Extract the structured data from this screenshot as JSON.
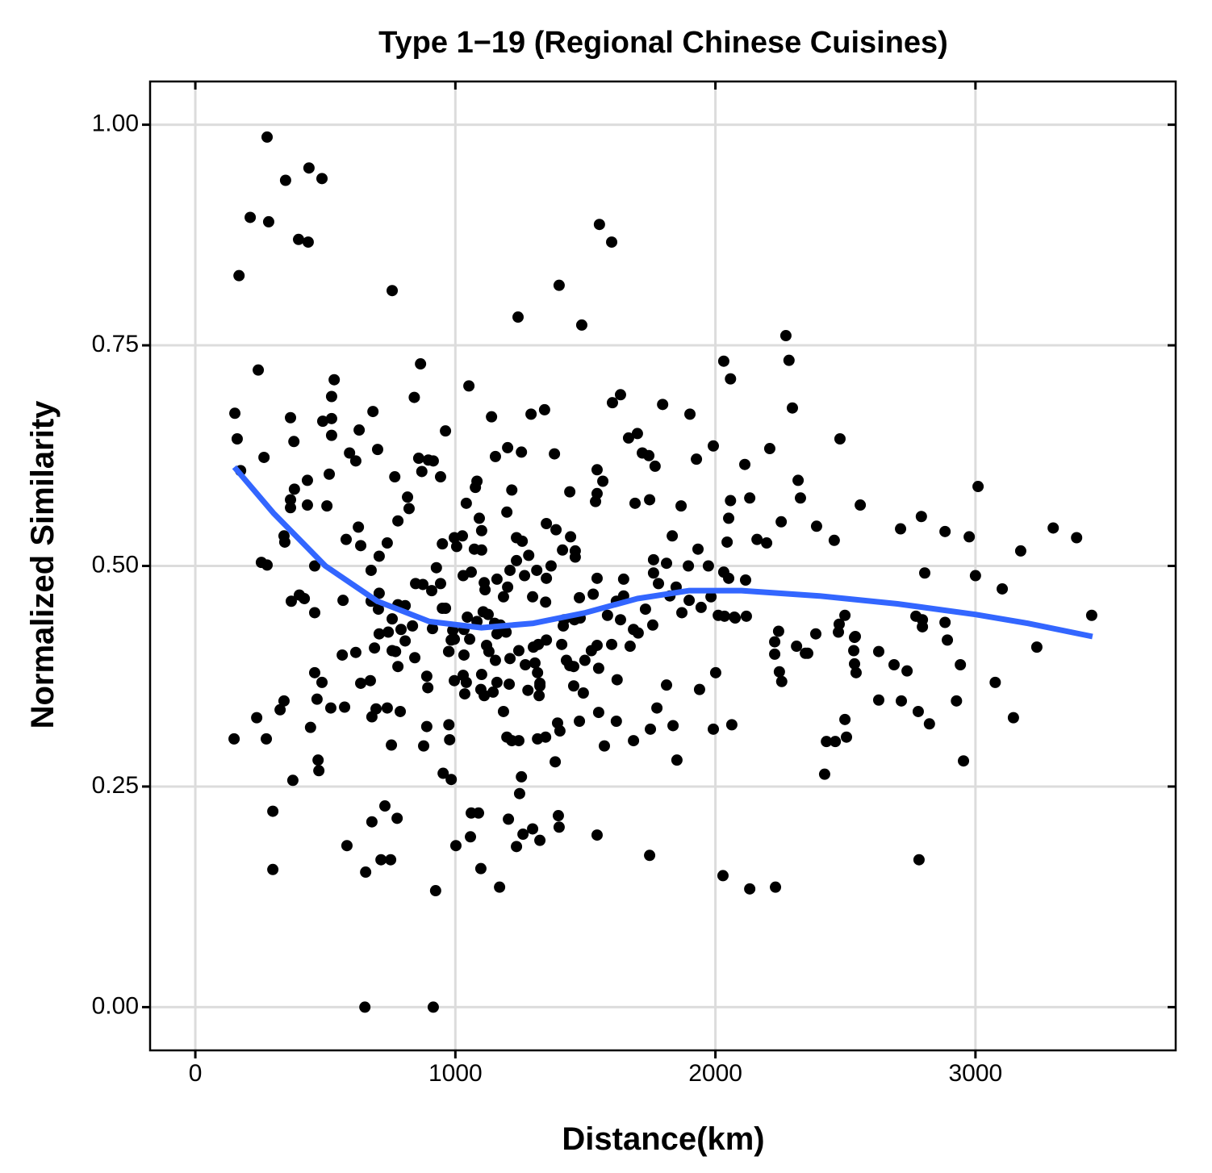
{
  "chart_data": {
    "type": "scatter",
    "title": "Type 1−19 (Regional Chinese Cuisines)",
    "xlabel": "Distance(km)",
    "ylabel": "Normalized Similarity",
    "xlim": [
      -174,
      3770
    ],
    "ylim": [
      -0.049,
      1.049
    ],
    "xticks": [
      0,
      1000,
      2000,
      3000
    ],
    "yticks": [
      {
        "value": 0,
        "label": "0.00"
      },
      {
        "value": 0.25,
        "label": "0.25"
      },
      {
        "value": 0.5,
        "label": "0.50"
      },
      {
        "value": 0.75,
        "label": "0.75"
      },
      {
        "value": 1,
        "label": "1.00"
      }
    ],
    "grid": true,
    "series": [
      {
        "mark": "point",
        "color": "#000000",
        "x": [
          276,
          437,
          347,
          487,
          211,
          282,
          397,
          434,
          168,
          757,
          1554,
          1601,
          1399,
          1241,
          1486,
          2271,
          2283,
          2032,
          242,
          2058,
          534,
          866,
          1052,
          152,
          366,
          683,
          842,
          1139,
          1291,
          1343,
          1635,
          2296,
          2479,
          161,
          379,
          593,
          962,
          1201,
          1666,
          1992,
          1927,
          2209,
          2113,
          3010,
          2557,
          2792,
          3389,
          3299,
          3174,
          3103,
          3447,
          3236,
          3000,
          2976,
          2883,
          2712,
          2457,
          2389,
          2318,
          2805,
          2796,
          2883,
          2892,
          2942,
          2927,
          3076,
          3146,
          2954,
          2783,
          2780,
          2823,
          2737,
          2687,
          2628,
          2628,
          2715,
          2535,
          2541,
          2532,
          2535,
          2498,
          2473,
          2498,
          2504,
          2461,
          2420,
          2312,
          2346,
          2243,
          2228,
          2246,
          2255,
          2231,
          2132,
          2029,
          2063,
          1992,
          2001,
          1939,
          1852,
          1837,
          1747,
          1685,
          1750,
          1775,
          1812,
          1573,
          1545,
          1551,
          1619,
          1384,
          1396,
          1399,
          1325,
          1297,
          1260,
          1235,
          1204,
          1247,
          1254,
          1170,
          1098,
          1058,
          1061,
          1089,
          1002,
          924,
          915,
          652,
          655,
          583,
          679,
          729,
          714,
          751,
          776,
          298,
          298,
          375,
          472,
          475,
          443,
          273,
          149,
          236,
          326,
          341,
          459,
          487,
          468,
          521,
          574,
          617,
          565,
          636,
          673,
          679,
          695,
          738,
          788,
          754,
          878,
          890,
          975,
          978,
          953,
          984,
          791,
          770,
          779,
          844,
          890,
          894,
          975,
          996,
          1036,
          1042,
          1098,
          1145,
          1101,
          1154,
          1210,
          1207,
          1217,
          1244,
          1198,
          1316,
          1347,
          1402,
          1393,
          1477,
          1455,
          1492,
          1440,
          1523,
          1551,
          1269,
          1316,
          1306,
          1279,
          1325,
          1319,
          1325,
          1322,
          1415,
          1418,
          1480,
          1530,
          1545,
          1585,
          1619,
          1647,
          1647,
          1622,
          1672,
          1703,
          1759,
          1762,
          1812,
          1834,
          1868,
          1933,
          1973,
          1945,
          1899,
          1871,
          2011,
          2035,
          2073,
          2119,
          2045,
          2051,
          2058,
          2132,
          2160,
          2197,
          2253,
          2327,
          1747,
          1691,
          1719,
          1768,
          1744,
          1797,
          1902,
          1700,
          1604,
          1567,
          1545,
          1545,
          1539,
          1440,
          1381,
          1254,
          1154,
          1083,
          1077,
          1042,
          1027,
          996,
          1005,
          943,
          915,
          859,
          871,
          896,
          816,
          767,
          822,
          779,
          738,
          707,
          676,
          636,
          627,
          617,
          630,
          701,
          515,
          506,
          431,
          431,
          381,
          366,
          366,
          341,
          344,
          369,
          400,
          419,
          459,
          459,
          254,
          276,
          264,
          174,
          524,
          490,
          524,
          524,
          580,
          568,
          676,
          707,
          704,
          757,
          779,
          807,
          742,
          707,
          689,
          757,
          807,
          835,
          847,
          875,
          909,
          943,
          950,
          912,
          990,
          984,
          1033,
          1055,
          1083,
          1107,
          1126,
          1114,
          1111,
          1151,
          1173,
          1195,
          1201,
          1210,
          1235,
          1235,
          1257,
          1282,
          1297,
          1266,
          1313,
          1347,
          1350,
          1368,
          1412,
          1461,
          1443,
          1461,
          1477,
          1458,
          1387,
          1350,
          1198,
          1217,
          1092,
          1101,
          1030,
          1061,
          1073,
          1101,
          1160,
          1185,
          1160,
          1120,
          1033,
          974,
          1030,
          1111,
          1129,
          950,
          927,
          962,
          1046,
          996,
          1160,
          1185,
          1244,
          1300,
          1350,
          1409,
          1427,
          1455,
          1498,
          1545,
          1601,
          1635,
          1685,
          1731,
          1762,
          1781,
          1849,
          1825,
          1896,
          1983,
          2032,
          2051,
          2116,
          2076,
          2228,
          2476,
          2427,
          2355,
          2386,
          2538,
          2771,
          2796
        ],
        "values": [
          0.986,
          0.951,
          0.937,
          0.939,
          0.895,
          0.89,
          0.87,
          0.867,
          0.829,
          0.812,
          0.887,
          0.867,
          0.818,
          0.782,
          0.773,
          0.761,
          0.733,
          0.732,
          0.722,
          0.712,
          0.711,
          0.729,
          0.704,
          0.673,
          0.668,
          0.675,
          0.691,
          0.669,
          0.672,
          0.677,
          0.694,
          0.679,
          0.644,
          0.644,
          0.641,
          0.628,
          0.653,
          0.634,
          0.645,
          0.636,
          0.621,
          0.633,
          0.615,
          0.59,
          0.569,
          0.556,
          0.532,
          0.543,
          0.517,
          0.474,
          0.444,
          0.408,
          0.489,
          0.533,
          0.539,
          0.542,
          0.529,
          0.545,
          0.597,
          0.492,
          0.439,
          0.436,
          0.416,
          0.388,
          0.347,
          0.368,
          0.328,
          0.279,
          0.167,
          0.335,
          0.321,
          0.381,
          0.388,
          0.403,
          0.348,
          0.347,
          0.389,
          0.379,
          0.404,
          0.419,
          0.444,
          0.425,
          0.326,
          0.306,
          0.301,
          0.264,
          0.409,
          0.401,
          0.426,
          0.4,
          0.38,
          0.369,
          0.136,
          0.134,
          0.149,
          0.32,
          0.315,
          0.379,
          0.36,
          0.28,
          0.319,
          0.172,
          0.302,
          0.315,
          0.339,
          0.365,
          0.296,
          0.195,
          0.334,
          0.324,
          0.278,
          0.217,
          0.204,
          0.189,
          0.202,
          0.196,
          0.182,
          0.213,
          0.242,
          0.261,
          0.136,
          0.157,
          0.193,
          0.22,
          0.22,
          0.183,
          0.132,
          0.0,
          0.0,
          0.153,
          0.183,
          0.21,
          0.228,
          0.167,
          0.167,
          0.214,
          0.156,
          0.222,
          0.257,
          0.28,
          0.268,
          0.317,
          0.304,
          0.304,
          0.328,
          0.337,
          0.347,
          0.379,
          0.368,
          0.349,
          0.339,
          0.34,
          0.402,
          0.399,
          0.367,
          0.37,
          0.329,
          0.338,
          0.339,
          0.335,
          0.297,
          0.296,
          0.318,
          0.32,
          0.303,
          0.265,
          0.258,
          0.428,
          0.403,
          0.386,
          0.396,
          0.375,
          0.362,
          0.403,
          0.37,
          0.355,
          0.368,
          0.36,
          0.357,
          0.377,
          0.393,
          0.395,
          0.366,
          0.302,
          0.302,
          0.306,
          0.304,
          0.306,
          0.313,
          0.322,
          0.324,
          0.364,
          0.356,
          0.387,
          0.404,
          0.384,
          0.388,
          0.379,
          0.39,
          0.359,
          0.367,
          0.411,
          0.364,
          0.353,
          0.432,
          0.439,
          0.441,
          0.468,
          0.486,
          0.444,
          0.46,
          0.466,
          0.485,
          0.371,
          0.409,
          0.424,
          0.433,
          0.507,
          0.503,
          0.534,
          0.568,
          0.519,
          0.5,
          0.453,
          0.461,
          0.447,
          0.444,
          0.443,
          0.442,
          0.443,
          0.527,
          0.554,
          0.574,
          0.577,
          0.53,
          0.526,
          0.55,
          0.577,
          0.575,
          0.571,
          0.628,
          0.613,
          0.625,
          0.683,
          0.672,
          0.65,
          0.685,
          0.596,
          0.609,
          0.582,
          0.573,
          0.584,
          0.627,
          0.629,
          0.624,
          0.596,
          0.589,
          0.571,
          0.534,
          0.532,
          0.522,
          0.601,
          0.619,
          0.622,
          0.607,
          0.62,
          0.578,
          0.601,
          0.565,
          0.551,
          0.526,
          0.511,
          0.495,
          0.523,
          0.544,
          0.619,
          0.654,
          0.632,
          0.604,
          0.568,
          0.597,
          0.569,
          0.587,
          0.575,
          0.566,
          0.534,
          0.527,
          0.46,
          0.467,
          0.463,
          0.5,
          0.447,
          0.504,
          0.501,
          0.623,
          0.608,
          0.667,
          0.664,
          0.648,
          0.692,
          0.53,
          0.461,
          0.46,
          0.469,
          0.451,
          0.44,
          0.456,
          0.455,
          0.425,
          0.423,
          0.407,
          0.404,
          0.415,
          0.432,
          0.48,
          0.479,
          0.472,
          0.48,
          0.452,
          0.429,
          0.427,
          0.416,
          0.428,
          0.417,
          0.437,
          0.448,
          0.445,
          0.473,
          0.481,
          0.435,
          0.433,
          0.425,
          0.476,
          0.495,
          0.506,
          0.532,
          0.528,
          0.512,
          0.465,
          0.489,
          0.495,
          0.459,
          0.486,
          0.5,
          0.518,
          0.517,
          0.533,
          0.51,
          0.464,
          0.439,
          0.541,
          0.548,
          0.561,
          0.586,
          0.554,
          0.54,
          0.489,
          0.493,
          0.519,
          0.518,
          0.485,
          0.465,
          0.423,
          0.41,
          0.399,
          0.403,
          0.376,
          0.353,
          0.403,
          0.525,
          0.498,
          0.452,
          0.442,
          0.417,
          0.368,
          0.335,
          0.404,
          0.408,
          0.416,
          0.411,
          0.393,
          0.386,
          0.393,
          0.41,
          0.411,
          0.439,
          0.428,
          0.451,
          0.492,
          0.48,
          0.476,
          0.466,
          0.5,
          0.465,
          0.493,
          0.486,
          0.484,
          0.441,
          0.414,
          0.434,
          0.301,
          0.401,
          0.423,
          0.42,
          0.443,
          0.431
        ]
      },
      {
        "mark": "line",
        "color": "#3366ff",
        "x": [
          150,
          300,
          500,
          700,
          900,
          1100,
          1300,
          1500,
          1700,
          1900,
          2100,
          2400,
          2700,
          3000,
          3200,
          3450
        ],
        "values": [
          0.612,
          0.56,
          0.5,
          0.46,
          0.437,
          0.43,
          0.435,
          0.447,
          0.463,
          0.472,
          0.472,
          0.466,
          0.457,
          0.445,
          0.435,
          0.42
        ]
      }
    ]
  }
}
